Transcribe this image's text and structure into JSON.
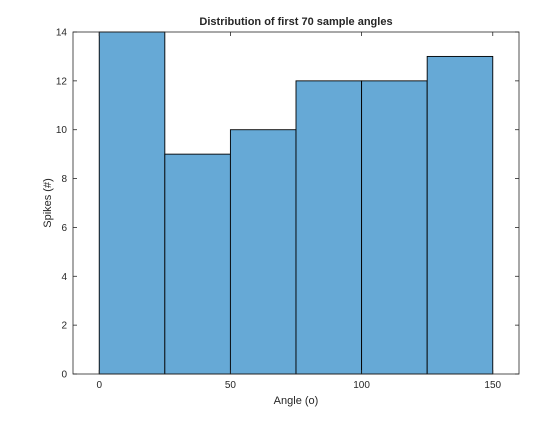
{
  "chart_data": {
    "type": "bar",
    "title": "Distribution of first 70 sample angles",
    "xlabel": "Angle (o)",
    "ylabel": "Spikes (#)",
    "bins": [
      {
        "x0": 0,
        "x1": 25,
        "value": 14
      },
      {
        "x0": 25,
        "x1": 50,
        "value": 9
      },
      {
        "x0": 50,
        "x1": 75,
        "value": 10
      },
      {
        "x0": 75,
        "x1": 100,
        "value": 12
      },
      {
        "x0": 100,
        "x1": 125,
        "value": 12
      },
      {
        "x0": 125,
        "x1": 150,
        "value": 13
      }
    ],
    "xlim": [
      -10,
      160
    ],
    "ylim": [
      0,
      14
    ],
    "xticks": [
      0,
      50,
      100,
      150
    ],
    "yticks": [
      0,
      2,
      4,
      6,
      8,
      10,
      12,
      14
    ],
    "bar_color": "#66a9d6",
    "edge_color": "#000000",
    "grid": false
  }
}
